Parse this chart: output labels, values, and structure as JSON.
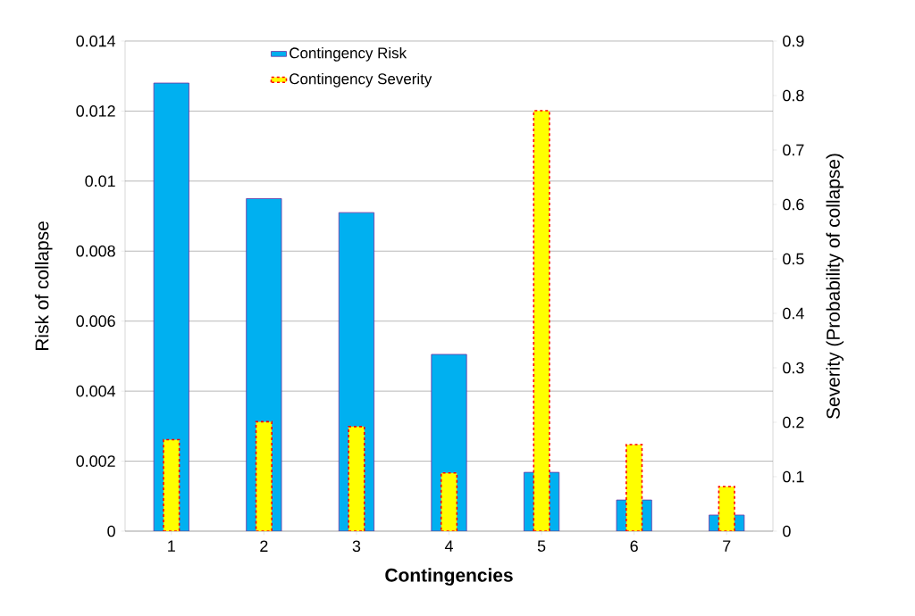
{
  "chart_data": {
    "type": "bar",
    "xlabel": "Contingencies",
    "ylabel": "Risk of collapse",
    "y2label": "Severity (Probability of collapse)",
    "categories": [
      "1",
      "2",
      "3",
      "4",
      "5",
      "6",
      "7"
    ],
    "series": [
      {
        "name": "Contingency Risk",
        "color": "#00b0f0",
        "values": [
          0.0128,
          0.0095,
          0.0091,
          0.00505,
          0.00168,
          0.00089,
          0.00046
        ]
      },
      {
        "name": "Contingency Severity",
        "color": "#ffff00",
        "axis": "y2",
        "line_style": "dashed",
        "values": [
          0.168,
          0.201,
          0.192,
          0.107,
          0.772,
          0.159,
          0.082
        ]
      }
    ],
    "ylim": [
      0,
      0.014
    ],
    "yticks": [
      0,
      0.002,
      0.004,
      0.006,
      0.008,
      0.01,
      0.012,
      0.014
    ],
    "y2lim": [
      0,
      0.9
    ],
    "y2ticks": [
      0,
      0.1,
      0.2,
      0.3,
      0.4,
      0.5,
      0.6,
      0.7,
      0.8,
      0.9
    ],
    "grid": "y",
    "legend": "top"
  }
}
